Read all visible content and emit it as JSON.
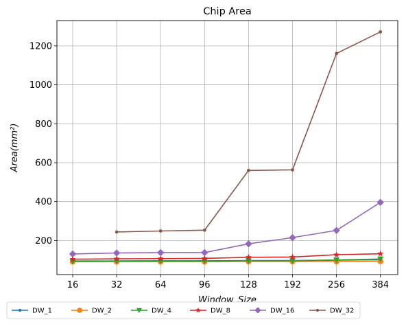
{
  "chart_data": {
    "type": "line",
    "title": "Chip Area",
    "xlabel": "Window_Size",
    "ylabel": "Area(mm²)",
    "categories": [
      "16",
      "32",
      "64",
      "96",
      "128",
      "192",
      "256",
      "384"
    ],
    "yticks": [
      "200",
      "400",
      "600",
      "800",
      "1000",
      "1200"
    ],
    "ylim": [
      25,
      1330
    ],
    "grid": true,
    "legend_position": "bottom",
    "series": [
      {
        "name": "DW_1",
        "color": "#1f77b4",
        "marker": "point",
        "values": [
          95,
          95,
          96,
          96,
          97,
          97,
          99,
          101
        ]
      },
      {
        "name": "DW_2",
        "color": "#ff7f0e",
        "marker": "circle",
        "values": [
          91,
          91,
          91,
          91,
          92,
          92,
          92,
          93
        ]
      },
      {
        "name": "DW_4",
        "color": "#2ca02c",
        "marker": "triangle",
        "values": [
          93,
          95,
          95,
          95,
          96,
          96,
          100,
          105
        ]
      },
      {
        "name": "DW_8",
        "color": "#d62728",
        "marker": "star",
        "values": [
          104,
          106,
          107,
          108,
          114,
          115,
          127,
          132
        ]
      },
      {
        "name": "DW_16",
        "color": "#9467bd",
        "marker": "diamond",
        "values": [
          131,
          136,
          138,
          138,
          183,
          215,
          252,
          396
        ]
      },
      {
        "name": "DW_32",
        "color": "#8c564b",
        "marker": "point",
        "values": [
          null,
          244,
          249,
          253,
          560,
          563,
          1161,
          1272
        ]
      }
    ]
  }
}
